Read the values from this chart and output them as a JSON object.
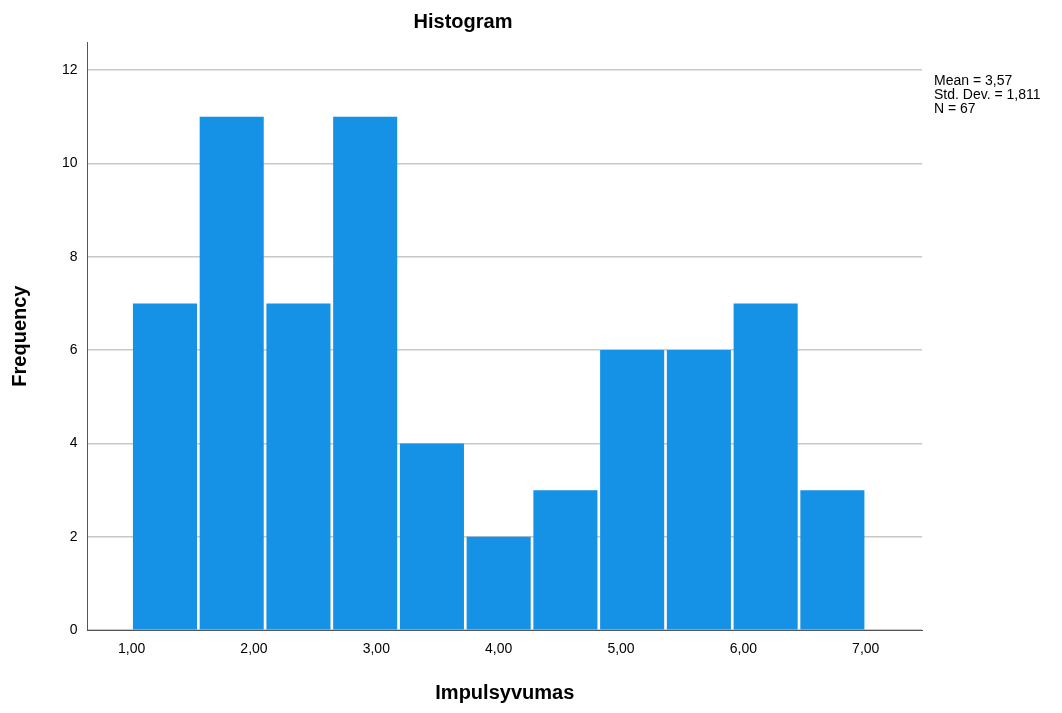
{
  "chart_data": {
    "type": "histogram",
    "title": "Histogram",
    "xlabel": "Impulsyvumas",
    "ylabel": "Frequency",
    "bins": [
      1,
      1.545,
      2.091,
      2.636,
      3.182,
      3.727,
      4.273,
      4.818,
      5.364,
      5.909,
      6.455,
      7
    ],
    "values": [
      7,
      11,
      7,
      11,
      4,
      2,
      3,
      6,
      6,
      7,
      3
    ],
    "color": "#1591e6",
    "xlim": [
      0.64,
      7.46
    ],
    "xticks": [
      {
        "value": 1,
        "label": "1,00"
      },
      {
        "value": 2,
        "label": "2,00"
      },
      {
        "value": 3,
        "label": "3,00"
      },
      {
        "value": 4,
        "label": "4,00"
      },
      {
        "value": 5,
        "label": "5,00"
      },
      {
        "value": 6,
        "label": "6,00"
      },
      {
        "value": 7,
        "label": "7,00"
      }
    ],
    "ylim": [
      0,
      12.6
    ],
    "yticks": [
      0,
      2,
      4,
      6,
      8,
      10,
      12
    ],
    "grid": "y",
    "legend": false,
    "annotations": [
      "Mean = 3,57",
      "Std. Dev. = 1,811",
      "N = 67"
    ]
  }
}
